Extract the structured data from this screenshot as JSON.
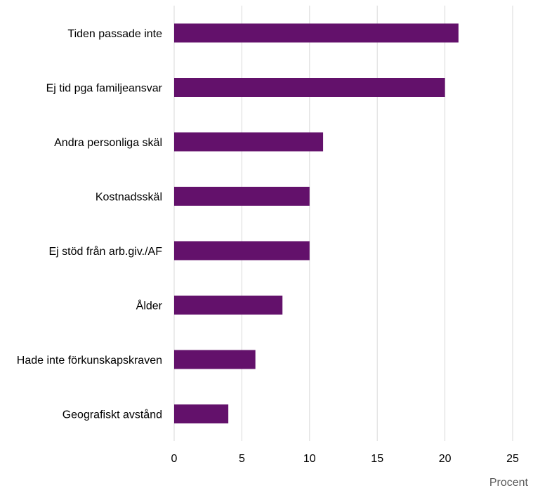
{
  "chart_data": {
    "type": "bar",
    "orientation": "horizontal",
    "categories": [
      "Tiden passade inte",
      "Ej tid pga familjeansvar",
      "Andra personliga skäl",
      "Kostnadsskäl",
      "Ej stöd från arb.giv./AF",
      "Ålder",
      "Hade inte förkunskapskraven",
      "Geografiskt avstånd"
    ],
    "values": [
      21,
      20,
      11,
      10,
      10,
      8,
      6,
      4
    ],
    "xlabel": "Procent",
    "ylabel": "",
    "xlim": [
      0,
      25
    ],
    "xticks": [
      0,
      5,
      10,
      15,
      20,
      25
    ],
    "grid": "vertical",
    "bar_color": "#63116B",
    "grid_color": "#D9D9D9"
  }
}
